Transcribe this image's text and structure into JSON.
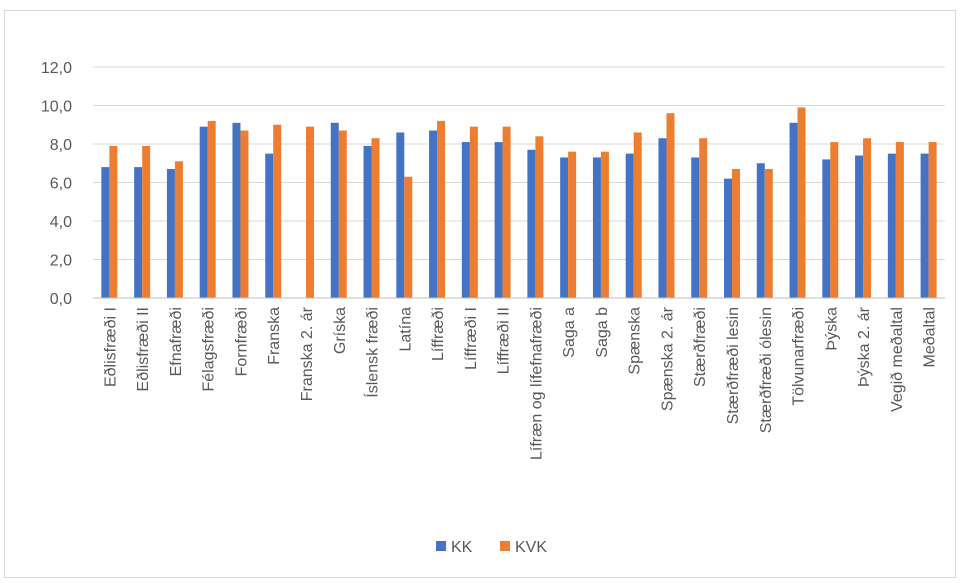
{
  "chart_data": {
    "type": "bar",
    "title": "",
    "xlabel": "",
    "ylabel": "",
    "ylim": [
      0,
      12
    ],
    "yticks": [
      "0,0",
      "2,0",
      "4,0",
      "6,0",
      "8,0",
      "10,0",
      "12,0"
    ],
    "grid": true,
    "legend_position": "bottom",
    "categories": [
      "Eðlisfræði I",
      "Eðlisfræði II",
      "Efnafræði",
      "Félagsfræði",
      "Fornfræði",
      "Franska",
      "Franska 2. ár",
      "Gríska",
      "Íslensk fræði",
      "Latína",
      "Líffræði",
      "Líffræði I",
      "Líffræði II",
      "Lífræn og lífefnafræði",
      "Saga a",
      "Saga b",
      "Spænska",
      "Spænska 2. ár",
      "Stærðfræði",
      "Stærðfræði lesin",
      "Stærðfræði ólesin",
      "Tölvunarfræði",
      "Þýska",
      "Þýska 2. ár",
      "Vegið meðaltal",
      "Meðaltal"
    ],
    "series": [
      {
        "name": "KK",
        "color": "#4472c4",
        "values": [
          6.8,
          6.8,
          6.7,
          8.9,
          9.1,
          7.5,
          null,
          9.1,
          7.9,
          8.6,
          8.7,
          8.1,
          8.1,
          7.7,
          7.3,
          7.3,
          7.5,
          8.3,
          7.3,
          6.2,
          7.0,
          9.1,
          7.2,
          7.4,
          7.5,
          7.5
        ]
      },
      {
        "name": "KVK",
        "color": "#ed7d31",
        "values": [
          7.9,
          7.9,
          7.1,
          9.2,
          8.7,
          9.0,
          8.9,
          8.7,
          8.3,
          6.3,
          9.2,
          8.9,
          8.9,
          8.4,
          7.6,
          7.6,
          8.6,
          9.6,
          8.3,
          6.7,
          6.7,
          9.9,
          8.1,
          8.3,
          8.1,
          8.1
        ]
      }
    ]
  }
}
